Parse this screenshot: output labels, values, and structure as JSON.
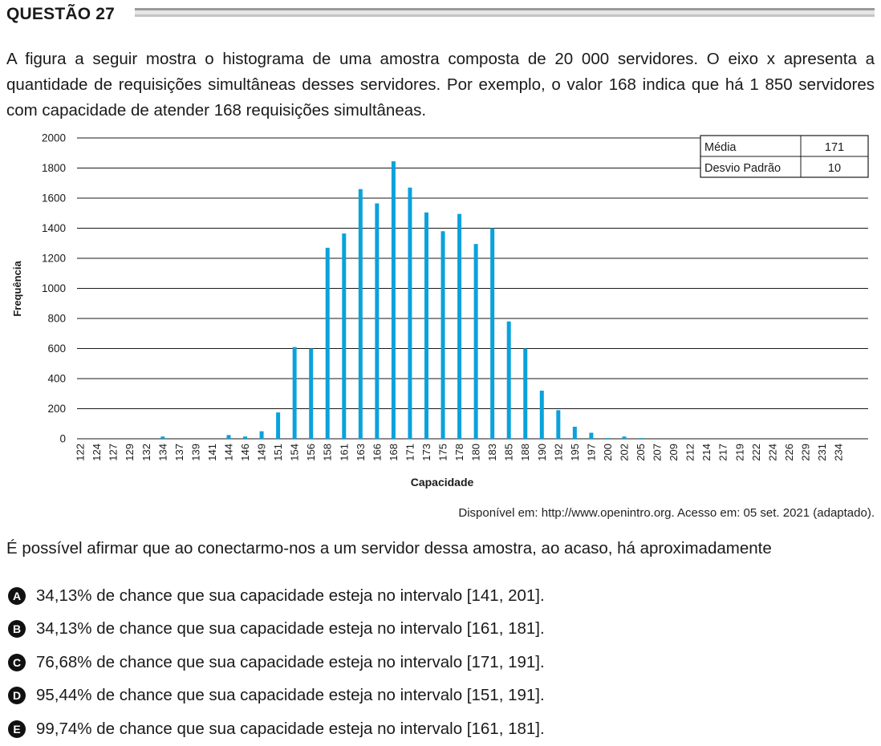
{
  "question": {
    "title": "QUESTÃO 27"
  },
  "intro": "A figura a seguir mostra o histograma de uma amostra composta de 20 000 servidores. O eixo x apresenta a quantidade de requisições simultâneas desses servidores. Por exemplo, o valor 168 indica que há 1 850 servidores com capacidade de atender 168 requisições simultâneas.",
  "stats_table": {
    "rows": [
      {
        "label": "Média",
        "value": "171"
      },
      {
        "label": "Desvio Padrão",
        "value": "10"
      }
    ]
  },
  "chart_data": {
    "type": "bar",
    "xlabel": "Capacidade",
    "ylabel": "Frequência",
    "ylim": [
      0,
      2000
    ],
    "yticks": [
      0,
      200,
      400,
      600,
      800,
      1000,
      1200,
      1400,
      1600,
      1800,
      2000
    ],
    "grid": true,
    "categories": [
      "122",
      "124",
      "127",
      "129",
      "132",
      "134",
      "137",
      "139",
      "141",
      "144",
      "146",
      "149",
      "151",
      "154",
      "156",
      "158",
      "161",
      "163",
      "166",
      "168",
      "171",
      "173",
      "175",
      "178",
      "180",
      "183",
      "185",
      "188",
      "190",
      "192",
      "195",
      "197",
      "200",
      "202",
      "205",
      "207",
      "209",
      "212",
      "214",
      "217",
      "219",
      "222",
      "224",
      "226",
      "229",
      "231",
      "234"
    ],
    "values": [
      0,
      0,
      0,
      0,
      0,
      15,
      0,
      0,
      0,
      25,
      15,
      50,
      175,
      610,
      600,
      1270,
      1365,
      1660,
      1565,
      1845,
      1670,
      1505,
      1380,
      1495,
      1295,
      1400,
      780,
      600,
      320,
      190,
      80,
      40,
      5,
      15,
      5,
      0,
      0,
      0,
      0,
      0,
      0,
      0,
      0,
      0,
      0,
      0,
      0
    ]
  },
  "source": "Disponível em: http://www.openintro.org. Acesso em: 05 set. 2021 (adaptado).",
  "prompt": "É possível afirmar que ao conectarmo-nos a um servidor dessa amostra, ao acaso, há aproximadamente",
  "options": [
    {
      "letter": "A",
      "text": "34,13% de chance que sua capacidade esteja no intervalo [141, 201]."
    },
    {
      "letter": "B",
      "text": "34,13% de chance que sua capacidade esteja no intervalo [161, 181]."
    },
    {
      "letter": "C",
      "text": "76,68% de chance que sua capacidade esteja no intervalo [171, 191]."
    },
    {
      "letter": "D",
      "text": "95,44% de chance que sua capacidade esteja no intervalo [151, 191]."
    },
    {
      "letter": "E",
      "text": "99,74% de chance que sua capacidade esteja no intervalo [161, 181]."
    }
  ],
  "colors": {
    "bar": "#0aa2dc",
    "grid": "#1a1a1a"
  }
}
